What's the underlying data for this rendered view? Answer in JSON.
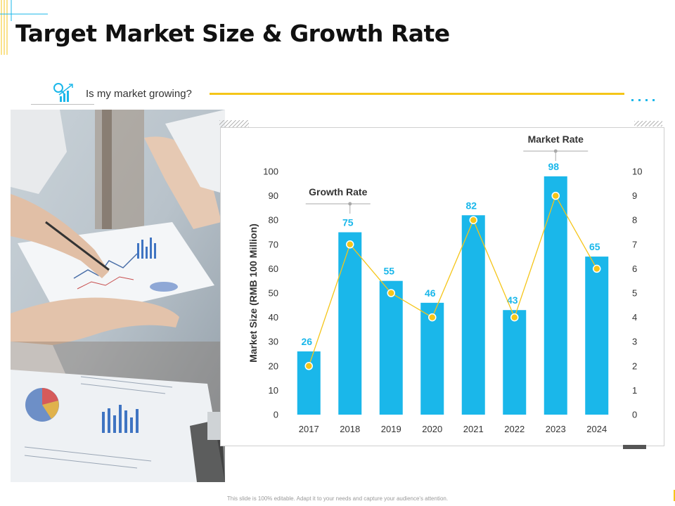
{
  "title": "Target Market Size & Growth Rate",
  "subtitle": {
    "question": "Is my market growing?",
    "icon": "growth-chart-search-icon"
  },
  "footer": "This slide is 100% editable. Adapt it to your needs and capture your audience's attention.",
  "colors": {
    "bar": "#1ab7ea",
    "line": "#f5c518",
    "accent_cyan": "#1ab7ea",
    "data_label": "#1ab7ea"
  },
  "photo": {
    "description_icon": "business-documents-photo"
  },
  "chart_data": {
    "type": "bar",
    "categories": [
      "2017",
      "2018",
      "2019",
      "2020",
      "2021",
      "2022",
      "2023",
      "2024"
    ],
    "series": [
      {
        "values": [
          26,
          75,
          55,
          46,
          82,
          43,
          98,
          65
        ],
        "axis": "left",
        "render": "bar"
      },
      {
        "values": [
          2,
          7,
          5,
          4,
          8,
          4,
          9,
          6
        ],
        "axis": "right",
        "render": "line"
      }
    ],
    "ylabel": "Market Size (RMB 100 Million)",
    "ylim": [
      0,
      100
    ],
    "y_ticks": [
      "0",
      "10",
      "20",
      "30",
      "40",
      "50",
      "60",
      "70",
      "80",
      "90",
      "100"
    ],
    "y2lim": [
      0,
      10
    ],
    "y2_ticks": [
      "0",
      "1",
      "2",
      "3",
      "4",
      "5",
      "6",
      "7",
      "8",
      "9",
      "10"
    ],
    "annotations": [
      {
        "text": "Growth Rate",
        "target_category": "2018"
      },
      {
        "text": "Market Rate",
        "target_category": "2023"
      }
    ],
    "grid": false
  }
}
